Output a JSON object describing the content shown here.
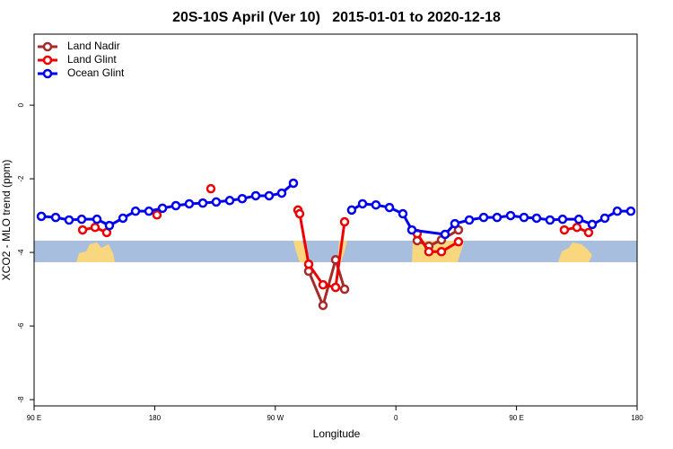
{
  "chart_data": {
    "type": "line",
    "title": "20S-10S April (Ver 10)   2015-01-01 to 2020-12-18",
    "xlabel": "Longitude",
    "ylabel": "XCO2 - MLO trend (ppm)",
    "xlim": [
      90,
      540
    ],
    "ylim": [
      -8.17,
      1.93
    ],
    "xticks": [
      {
        "value": 90,
        "label": "90 E"
      },
      180,
      {
        "value": 270,
        "label": "90 W"
      },
      {
        "value": 360,
        "label": "0"
      },
      {
        "value": 450,
        "label": "90 E"
      },
      {
        "value": 540,
        "label": "180"
      }
    ],
    "yticks": [
      0,
      -2,
      -4,
      -6,
      -8
    ],
    "legend": "upper left",
    "series": [
      {
        "name": "Land Nadir",
        "color": "#a52a2a",
        "x": [
          294.9,
          305.6,
          315.0,
          321.7,
          null,
          375.9,
          384.6,
          394.0,
          406.7
        ],
        "values": [
          -4.51,
          -5.44,
          -4.2,
          -5.0,
          null,
          -3.68,
          -3.83,
          -3.66,
          -3.39
        ]
      },
      {
        "name": "Land Glint",
        "color": "#ee0000",
        "x": [
          126.2,
          135.5,
          144.2,
          null,
          181.7,
          null,
          221.9,
          null,
          286.9,
          288.2,
          294.9,
          305.6,
          315.0,
          321.7,
          null,
          375.9,
          384.6,
          394.0,
          406.7,
          null,
          485.7,
          495.1,
          503.8
        ],
        "values": [
          -3.39,
          -3.32,
          -3.46,
          null,
          -2.98,
          null,
          -2.27,
          null,
          -2.85,
          -2.95,
          -4.32,
          -4.88,
          -4.95,
          -3.17,
          null,
          -3.49,
          -3.98,
          -3.98,
          -3.71,
          null,
          -3.39,
          -3.32,
          -3.46
        ]
      },
      {
        "name": "Ocean Glint",
        "color": "#0000ee",
        "x": [
          95.4,
          106.1,
          116.1,
          125.5,
          136.9,
          146.2,
          156.3,
          165.7,
          175.7,
          185.8,
          195.8,
          205.8,
          215.9,
          225.9,
          236.0,
          245.3,
          255.4,
          265.4,
          274.8,
          283.5,
          null,
          327.0,
          335.1,
          345.1,
          355.2,
          365.2,
          371.9,
          396.7,
          404.0,
          414.8,
          425.5,
          435.5,
          445.6,
          455.6,
          465.0,
          475.0,
          484.4,
          496.5,
          506.5,
          515.9,
          525.2,
          535.3
        ],
        "values": [
          -3.02,
          -3.05,
          -3.12,
          -3.1,
          -3.1,
          -3.27,
          -3.07,
          -2.88,
          -2.88,
          -2.8,
          -2.73,
          -2.68,
          -2.66,
          -2.63,
          -2.59,
          -2.54,
          -2.46,
          -2.46,
          -2.39,
          -2.12,
          null,
          -2.85,
          -2.68,
          -2.71,
          -2.78,
          -2.95,
          -3.39,
          -3.51,
          -3.22,
          -3.12,
          -3.05,
          -3.05,
          -3.0,
          -3.05,
          -3.07,
          -3.12,
          -3.1,
          -3.1,
          -3.24,
          -3.07,
          -2.88,
          -2.88
        ]
      }
    ]
  }
}
